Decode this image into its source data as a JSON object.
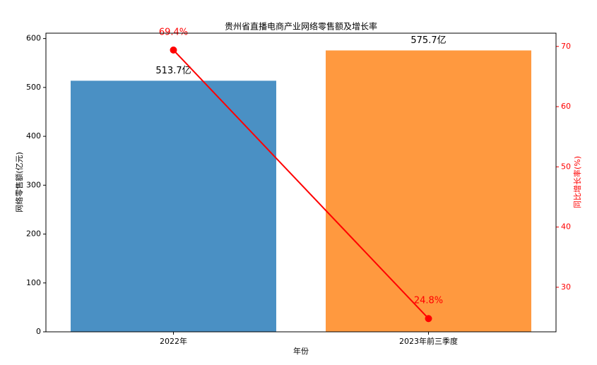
{
  "chart_data": {
    "type": "bar",
    "title": "贵州省直播电商产业网络零售额及增长率",
    "xlabel": "年份",
    "ylabel": "网络零售额(亿元)",
    "y2label": "同比增长率(%)",
    "categories": [
      "2022年",
      "2023年前三季度"
    ],
    "series": [
      {
        "type": "bar",
        "colors": [
          "#4a90c4",
          "#ff993f"
        ],
        "values": [
          513.7,
          575.7
        ],
        "value_labels": [
          "513.7亿",
          "575.7亿"
        ]
      },
      {
        "type": "line",
        "color": "#ff0000",
        "axis": "y2",
        "values": [
          69.4,
          24.8
        ],
        "value_labels": [
          "69.4%",
          "24.8%"
        ]
      }
    ],
    "ylim": [
      0,
      611
    ],
    "yticks": [
      0,
      100,
      200,
      300,
      400,
      500,
      600
    ],
    "y2lim": [
      22.6,
      72.2
    ],
    "y2ticks": [
      30,
      40,
      50,
      60,
      70
    ]
  }
}
